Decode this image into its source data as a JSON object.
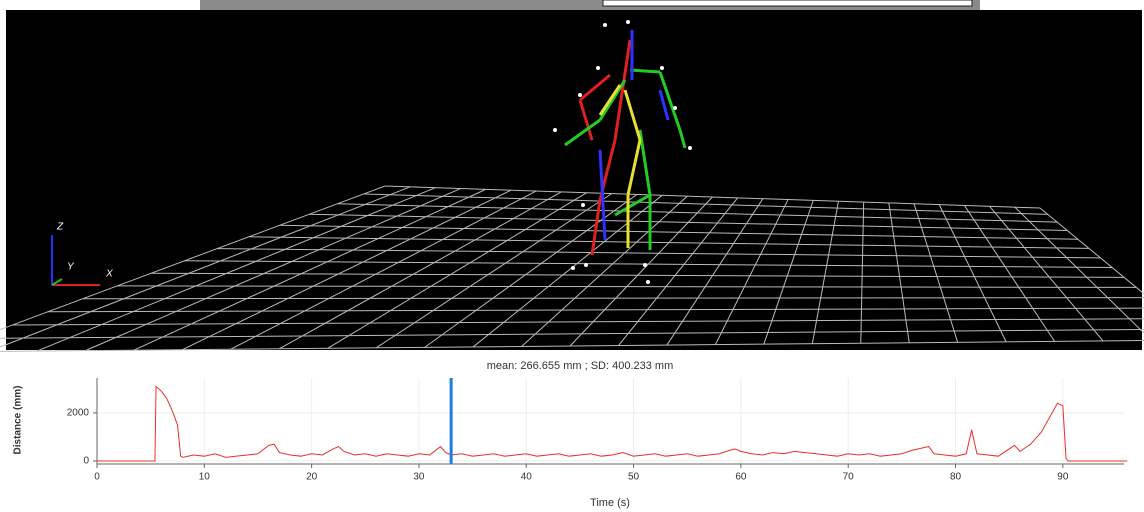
{
  "view": {
    "axis_labels": [
      "Z",
      "Y",
      "X"
    ]
  },
  "chart_data": {
    "type": "line",
    "title": "mean: 266.655 mm ; SD: 400.233 mm",
    "x_label": "Time (s)",
    "y_label": "Distance (mm)",
    "x": [
      0,
      5.4,
      5.5,
      6,
      6.5,
      7,
      7.5,
      7.8,
      8,
      9,
      10,
      11,
      12,
      13,
      14,
      15,
      16,
      16.5,
      17,
      18,
      19,
      20,
      21,
      22,
      22.5,
      23,
      24,
      25,
      26,
      27,
      28,
      29,
      30,
      31,
      32,
      32.5,
      33,
      34,
      35,
      36,
      37,
      38,
      39,
      40,
      41,
      42,
      43,
      44,
      45,
      46,
      47,
      48,
      49,
      50,
      51,
      52,
      53,
      54,
      55,
      56,
      57,
      58,
      59,
      59.5,
      60,
      61,
      62,
      63,
      64,
      65,
      66,
      67,
      68,
      69,
      70,
      71,
      72,
      73,
      74,
      75,
      76,
      77,
      77.5,
      78,
      79,
      80,
      81,
      81.5,
      82,
      83,
      84,
      85,
      85.5,
      86,
      87,
      88,
      89,
      89.5,
      90,
      90.3,
      90.5,
      91,
      96
    ],
    "values": [
      0,
      0,
      3100,
      2900,
      2600,
      2100,
      1500,
      200,
      150,
      250,
      200,
      300,
      150,
      200,
      250,
      300,
      650,
      700,
      350,
      250,
      200,
      300,
      250,
      500,
      600,
      400,
      250,
      300,
      200,
      300,
      250,
      200,
      300,
      250,
      600,
      350,
      250,
      300,
      200,
      250,
      300,
      200,
      250,
      300,
      200,
      250,
      300,
      200,
      250,
      300,
      200,
      250,
      350,
      200,
      250,
      300,
      200,
      250,
      300,
      200,
      250,
      300,
      450,
      500,
      400,
      300,
      250,
      350,
      300,
      400,
      350,
      300,
      250,
      200,
      300,
      250,
      300,
      200,
      250,
      300,
      450,
      550,
      600,
      300,
      250,
      200,
      300,
      1300,
      300,
      250,
      200,
      500,
      650,
      400,
      700,
      1200,
      2000,
      2400,
      2300,
      100,
      0,
      0,
      0
    ],
    "color": "#e8302a",
    "cursor": {
      "x": 33,
      "color": "#1e7be0"
    },
    "xlim": [
      0,
      95.7
    ],
    "xticks": [
      0,
      10,
      20,
      30,
      40,
      50,
      60,
      70,
      80,
      90
    ],
    "ylim": [
      -125,
      3450
    ],
    "yticks": [
      0,
      2000
    ],
    "grid": true
  }
}
